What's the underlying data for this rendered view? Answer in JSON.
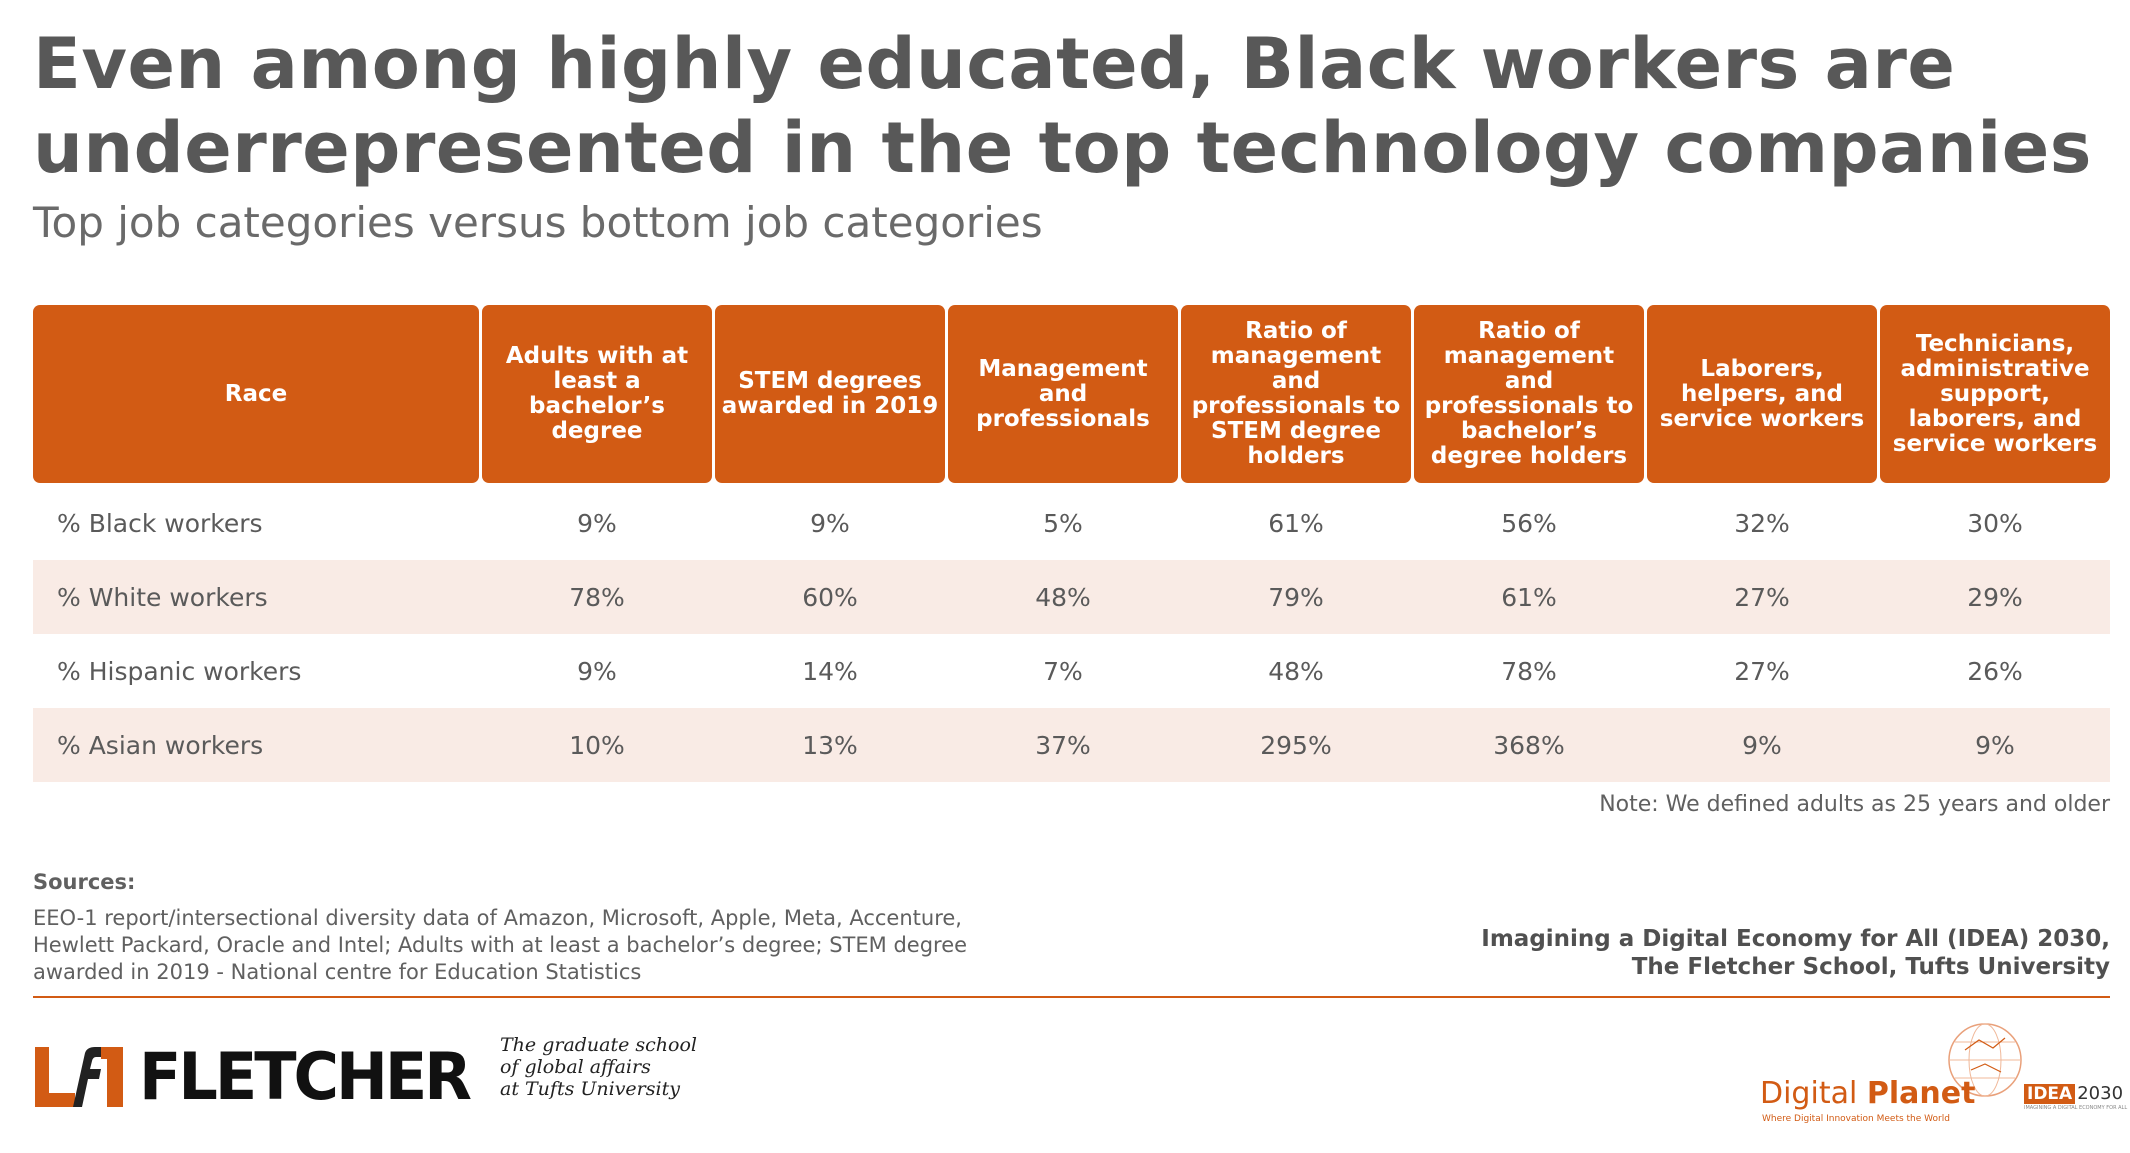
{
  "title": "Even among highly educated, Black workers are underrepresented in the top technology companies",
  "subtitle": "Top job categories versus bottom job categories",
  "chart_data": {
    "type": "table",
    "columns": [
      "Race",
      "Adults with at least a bachelor’s degree",
      "STEM degrees awarded in 2019",
      "Management and professionals",
      "Ratio of management and professionals to STEM degree holders",
      "Ratio of management and professionals to bachelor’s degree holders",
      "Laborers, helpers, and service workers",
      "Technicians, administrative support, laborers, and service workers"
    ],
    "rows": [
      [
        "% Black workers",
        "9%",
        "9%",
        "5%",
        "61%",
        "56%",
        "32%",
        "30%"
      ],
      [
        "% White workers",
        "78%",
        "60%",
        "48%",
        "79%",
        "61%",
        "27%",
        "29%"
      ],
      [
        "% Hispanic workers",
        "9%",
        "14%",
        "7%",
        "48%",
        "78%",
        "27%",
        "26%"
      ],
      [
        "% Asian workers",
        "10%",
        "13%",
        "37%",
        "295%",
        "368%",
        "9%",
        "9%"
      ]
    ]
  },
  "note": "Note: We defined adults as 25 years and older",
  "sources_heading": "Sources:",
  "sources_text": "EEO-1 report/intersectional diversity data of Amazon, Microsoft, Apple, Meta, Accenture, Hewlett Packard, Oracle and Intel; Adults with at least a bachelor’s degree; STEM degree awarded in 2019 - National centre for Education Statistics",
  "credit": {
    "line1": "Imagining a Digital Economy for All (IDEA) 2030,",
    "line2": "The Fletcher School, Tufts University"
  },
  "logos": {
    "fletcher_word": "FLETCHER",
    "fletcher_mark": "lf",
    "tagline": [
      "The graduate school",
      "of global affairs",
      "at Tufts University"
    ],
    "digital_planet_a": "Digital ",
    "digital_planet_b": "Planet",
    "digital_planet_tag": "Where Digital Innovation Meets the World",
    "idea_box": "IDEA",
    "idea_year": "2030",
    "idea_sub": "IMAGINING A DIGITAL ECONOMY FOR ALL"
  },
  "colors": {
    "accent": "#d25b14",
    "row_shade": "#f9ebe5",
    "text": "#595959"
  }
}
